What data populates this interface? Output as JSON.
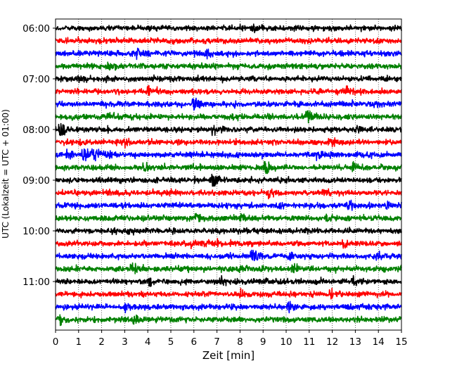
{
  "chart_data": {
    "type": "line",
    "title": "",
    "xlabel": "Zeit  [min]",
    "ylabel": "UTC (Lokalzeit = UTC + 01:00)",
    "xlim": [
      0,
      15
    ],
    "x_ticks": [
      "0",
      "1",
      "2",
      "3",
      "4",
      "5",
      "6",
      "7",
      "8",
      "9",
      "10",
      "11",
      "12",
      "13",
      "14",
      "15"
    ],
    "y_ticks": [
      "06:00",
      "07:00",
      "08:00",
      "09:00",
      "10:00",
      "11:00"
    ],
    "grid": "vertical-dotted",
    "trace_colors": [
      "#000000",
      "#ff0000",
      "#0000ff",
      "#008000"
    ],
    "traces": [
      {
        "start": "06:00",
        "events": [
          [
            8.5,
            0.7
          ]
        ]
      },
      {
        "start": "06:15",
        "events": []
      },
      {
        "start": "06:30",
        "events": [
          [
            3.5,
            1.0
          ],
          [
            6.5,
            0.6
          ]
        ]
      },
      {
        "start": "06:45",
        "events": [
          [
            2.2,
            1.0
          ]
        ]
      },
      {
        "start": "07:00",
        "events": [
          [
            1.0,
            1.2
          ]
        ]
      },
      {
        "start": "07:15",
        "events": [
          [
            4.0,
            0.6
          ],
          [
            12.6,
            0.6
          ]
        ]
      },
      {
        "start": "07:30",
        "events": [
          [
            6.0,
            2.6
          ]
        ]
      },
      {
        "start": "07:45",
        "events": [
          [
            2.3,
            0.8
          ],
          [
            7.6,
            0.7
          ],
          [
            10.9,
            2.0
          ]
        ]
      },
      {
        "start": "08:00",
        "events": [
          [
            0.2,
            1.4
          ],
          [
            6.8,
            0.8
          ],
          [
            13.0,
            0.6
          ]
        ]
      },
      {
        "start": "08:15",
        "events": [
          [
            3.0,
            0.5
          ],
          [
            11.9,
            0.7
          ]
        ]
      },
      {
        "start": "08:30",
        "events": [
          [
            0.5,
            0.9
          ],
          [
            1.2,
            1.8
          ],
          [
            1.6,
            1.5
          ],
          [
            2.1,
            0.6
          ],
          [
            11.3,
            0.6
          ]
        ]
      },
      {
        "start": "08:45",
        "events": [
          [
            3.8,
            0.7
          ],
          [
            9.1,
            1.8
          ],
          [
            12.9,
            0.7
          ]
        ]
      },
      {
        "start": "09:00",
        "events": [
          [
            6.8,
            2.0
          ]
        ]
      },
      {
        "start": "09:15",
        "events": [
          [
            9.2,
            0.7
          ],
          [
            11.6,
            0.6
          ]
        ]
      },
      {
        "start": "09:30",
        "events": [
          [
            9.7,
            0.6
          ],
          [
            12.7,
            0.8
          ],
          [
            14.4,
            0.7
          ]
        ]
      },
      {
        "start": "09:45",
        "events": [
          [
            6.1,
            0.9
          ],
          [
            8.0,
            0.6
          ],
          [
            11.7,
            0.7
          ]
        ]
      },
      {
        "start": "10:00",
        "events": [
          [
            3.2,
            0.6
          ]
        ]
      },
      {
        "start": "10:15",
        "events": [
          [
            5.9,
            0.7
          ],
          [
            7.0,
            0.7
          ],
          [
            12.5,
            0.7
          ]
        ]
      },
      {
        "start": "10:30",
        "events": [
          [
            8.5,
            1.7
          ],
          [
            10.1,
            0.6
          ],
          [
            13.9,
            0.6
          ]
        ]
      },
      {
        "start": "10:45",
        "events": [
          [
            3.3,
            0.8
          ],
          [
            8.0,
            0.6
          ],
          [
            10.3,
            1.0
          ]
        ]
      },
      {
        "start": "11:00",
        "events": [
          [
            4.0,
            0.9
          ],
          [
            7.2,
            0.6
          ],
          [
            12.9,
            0.7
          ]
        ]
      },
      {
        "start": "11:15",
        "events": [
          [
            8.0,
            0.6
          ],
          [
            11.9,
            0.6
          ]
        ]
      },
      {
        "start": "11:30",
        "events": [
          [
            3.0,
            0.7
          ],
          [
            10.1,
            0.9
          ],
          [
            12.7,
            0.6
          ]
        ]
      },
      {
        "start": "11:45",
        "events": [
          [
            0.2,
            0.6
          ],
          [
            3.4,
            0.7
          ]
        ]
      }
    ]
  }
}
